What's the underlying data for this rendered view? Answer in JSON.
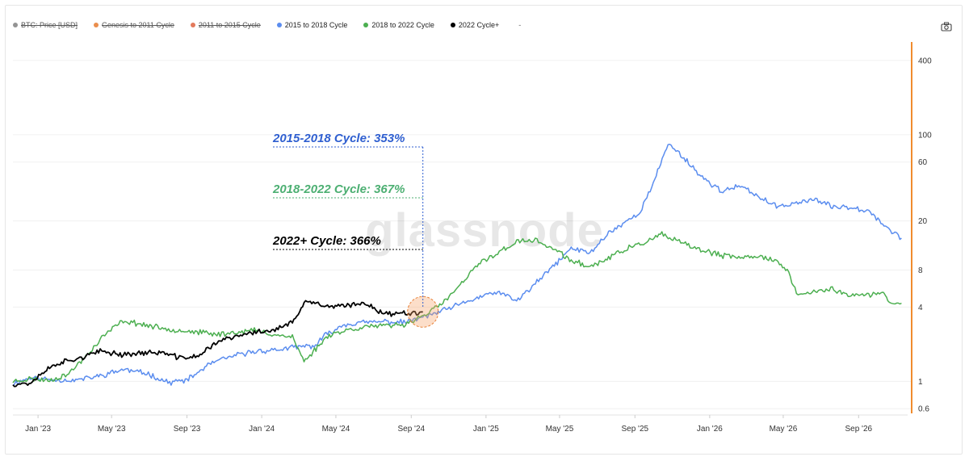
{
  "legend": {
    "items": [
      {
        "label": "BTC: Price [USD]",
        "color": "#888888",
        "hidden": true
      },
      {
        "label": "Genesis to 2011 Cycle",
        "color": "#e8823a",
        "hidden": true
      },
      {
        "label": "2011 to 2015 Cycle",
        "color": "#e06b4a",
        "hidden": true
      },
      {
        "label": "2015 to 2018 Cycle",
        "color": "#5b8def",
        "hidden": false
      },
      {
        "label": "2018 to 2022 Cycle",
        "color": "#4caf50",
        "hidden": false
      },
      {
        "label": "2022 Cycle+",
        "color": "#000000",
        "hidden": false
      }
    ],
    "extra": "-"
  },
  "watermark": "glassnode",
  "chart_data": {
    "type": "line",
    "y_scale": "log",
    "x_ticks": [
      "Jan '23",
      "May '23",
      "Sep '23",
      "Jan '24",
      "May '24",
      "Sep '24",
      "Jan '25",
      "May '25",
      "Sep '25",
      "Jan '26",
      "May '26",
      "Sep '26"
    ],
    "y_ticks": [
      "400",
      "100",
      "60",
      "20",
      "8",
      "4",
      "1",
      "0.6"
    ],
    "ylim": [
      0.55,
      600
    ],
    "xlim": [
      "2022-11-21",
      "2026-11-20"
    ],
    "annotations": [
      {
        "text": "2015-2018 Cycle: 353%",
        "color": "#2f5fd0"
      },
      {
        "text": "2018-2022 Cycle: 367%",
        "color": "#4caf72"
      },
      {
        "text": "2022+ Cycle: 366%",
        "color": "#000000"
      }
    ],
    "series": [
      {
        "name": "2015 to 2018 Cycle",
        "color": "#5b8def",
        "points": [
          [
            "2022-11-21",
            0.96
          ],
          [
            "2022-12-20",
            1.07
          ],
          [
            "2023-01-25",
            1.03
          ],
          [
            "2023-03-01",
            1.02
          ],
          [
            "2023-04-10",
            1.1
          ],
          [
            "2023-05-20",
            1.25
          ],
          [
            "2023-06-30",
            1.15
          ],
          [
            "2023-08-01",
            0.98
          ],
          [
            "2023-09-01",
            1.02
          ],
          [
            "2023-10-10",
            1.4
          ],
          [
            "2023-11-15",
            1.6
          ],
          [
            "2023-12-20",
            1.75
          ],
          [
            "2024-01-25",
            1.8
          ],
          [
            "2024-03-01",
            1.9
          ],
          [
            "2024-03-29",
            1.95
          ],
          [
            "2024-04-15",
            2.4
          ],
          [
            "2024-05-15",
            2.9
          ],
          [
            "2024-06-15",
            3.0
          ],
          [
            "2024-07-20",
            3.05
          ],
          [
            "2024-08-20",
            3.0
          ],
          [
            "2024-09-20",
            3.3
          ],
          [
            "2024-10-20",
            3.7
          ],
          [
            "2024-11-20",
            4.2
          ],
          [
            "2024-12-20",
            4.8
          ],
          [
            "2025-01-20",
            5.3
          ],
          [
            "2025-02-20",
            4.5
          ],
          [
            "2025-03-20",
            6.0
          ],
          [
            "2025-04-20",
            8.5
          ],
          [
            "2025-05-20",
            12.0
          ],
          [
            "2025-06-20",
            11.0
          ],
          [
            "2025-07-20",
            16.0
          ],
          [
            "2025-08-20",
            20.0
          ],
          [
            "2025-09-10",
            24.0
          ],
          [
            "2025-10-01",
            40.0
          ],
          [
            "2025-10-25",
            85.0
          ],
          [
            "2025-11-20",
            65.0
          ],
          [
            "2025-12-20",
            45.0
          ],
          [
            "2026-01-20",
            35.0
          ],
          [
            "2026-02-20",
            38.0
          ],
          [
            "2026-03-20",
            32.0
          ],
          [
            "2026-04-20",
            26.0
          ],
          [
            "2026-05-20",
            28.0
          ],
          [
            "2026-06-20",
            30.0
          ],
          [
            "2026-07-20",
            26.0
          ],
          [
            "2026-08-20",
            26.0
          ],
          [
            "2026-09-20",
            24.0
          ],
          [
            "2026-10-20",
            17.0
          ],
          [
            "2026-11-10",
            14.5
          ]
        ]
      },
      {
        "name": "2018 to 2022 Cycle",
        "color": "#4caf50",
        "points": [
          [
            "2022-11-21",
            1.0
          ],
          [
            "2022-12-20",
            1.05
          ],
          [
            "2023-01-20",
            1.02
          ],
          [
            "2023-02-20",
            1.15
          ],
          [
            "2023-03-20",
            1.6
          ],
          [
            "2023-04-20",
            2.4
          ],
          [
            "2023-05-20",
            3.1
          ],
          [
            "2023-06-20",
            2.9
          ],
          [
            "2023-07-20",
            2.7
          ],
          [
            "2023-08-20",
            2.6
          ],
          [
            "2023-09-20",
            2.5
          ],
          [
            "2023-10-20",
            2.4
          ],
          [
            "2023-11-20",
            2.5
          ],
          [
            "2023-12-20",
            2.6
          ],
          [
            "2024-01-20",
            2.4
          ],
          [
            "2024-02-20",
            2.3
          ],
          [
            "2024-03-10",
            1.45
          ],
          [
            "2024-04-01",
            1.9
          ],
          [
            "2024-04-20",
            2.4
          ],
          [
            "2024-05-20",
            2.6
          ],
          [
            "2024-06-20",
            2.8
          ],
          [
            "2024-07-20",
            2.8
          ],
          [
            "2024-08-20",
            2.9
          ],
          [
            "2024-09-20",
            3.4
          ],
          [
            "2024-10-20",
            4.2
          ],
          [
            "2024-11-20",
            6.0
          ],
          [
            "2024-12-20",
            9.0
          ],
          [
            "2025-01-20",
            11.0
          ],
          [
            "2025-02-20",
            13.5
          ],
          [
            "2025-03-20",
            14.0
          ],
          [
            "2025-04-20",
            12.0
          ],
          [
            "2025-05-20",
            9.5
          ],
          [
            "2025-06-20",
            8.5
          ],
          [
            "2025-07-20",
            10.0
          ],
          [
            "2025-08-20",
            12.0
          ],
          [
            "2025-09-20",
            13.5
          ],
          [
            "2025-10-15",
            15.5
          ],
          [
            "2025-11-20",
            13.0
          ],
          [
            "2025-12-20",
            11.5
          ],
          [
            "2026-01-20",
            10.5
          ],
          [
            "2026-02-20",
            10.0
          ],
          [
            "2026-03-20",
            10.5
          ],
          [
            "2026-04-20",
            9.5
          ],
          [
            "2026-05-10",
            7.5
          ],
          [
            "2026-05-25",
            5.0
          ],
          [
            "2026-06-20",
            5.3
          ],
          [
            "2026-07-20",
            5.6
          ],
          [
            "2026-08-20",
            5.0
          ],
          [
            "2026-09-20",
            5.0
          ],
          [
            "2026-10-10",
            5.3
          ],
          [
            "2026-10-20",
            4.4
          ],
          [
            "2026-11-10",
            4.3
          ]
        ]
      },
      {
        "name": "2022 Cycle+",
        "color": "#000000",
        "points": [
          [
            "2022-11-21",
            0.95
          ],
          [
            "2022-12-20",
            0.97
          ],
          [
            "2023-01-10",
            1.2
          ],
          [
            "2023-02-01",
            1.4
          ],
          [
            "2023-03-10",
            1.55
          ],
          [
            "2023-04-15",
            1.75
          ],
          [
            "2023-05-20",
            1.65
          ],
          [
            "2023-06-20",
            1.7
          ],
          [
            "2023-07-20",
            1.72
          ],
          [
            "2023-08-20",
            1.55
          ],
          [
            "2023-09-20",
            1.6
          ],
          [
            "2023-10-20",
            2.1
          ],
          [
            "2023-11-20",
            2.3
          ],
          [
            "2023-12-20",
            2.5
          ],
          [
            "2024-01-20",
            2.6
          ],
          [
            "2024-02-20",
            3.0
          ],
          [
            "2024-03-15",
            4.5
          ],
          [
            "2024-04-20",
            4.0
          ],
          [
            "2024-05-20",
            4.1
          ],
          [
            "2024-06-20",
            4.3
          ],
          [
            "2024-07-20",
            3.5
          ],
          [
            "2024-08-20",
            3.6
          ],
          [
            "2024-09-20",
            3.66
          ]
        ]
      }
    ]
  }
}
